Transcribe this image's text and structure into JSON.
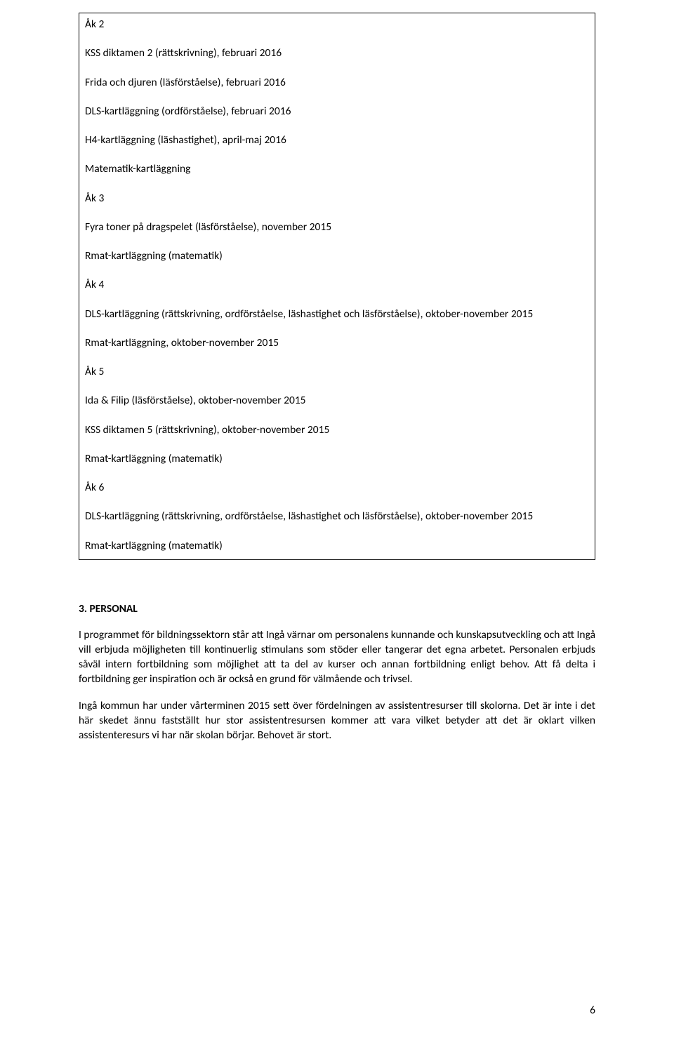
{
  "box": {
    "ak2_label": "Åk 2",
    "ak2_l1": "KSS diktamen 2 (rättskrivning), februari 2016",
    "ak2_l2": "Frida och djuren (läsförståelse), februari 2016",
    "ak2_l3": "DLS-kartläggning (ordförståelse), februari 2016",
    "ak2_l4": "H4-kartläggning (läshastighet), april-maj 2016",
    "ak2_l5": "Matematik-kartläggning",
    "ak3_label": "Åk 3",
    "ak3_l1": "Fyra toner på dragspelet (läsförståelse), november 2015",
    "ak3_l2": "Rmat-kartläggning (matematik)",
    "ak4_label": "Åk 4",
    "ak4_l1": "DLS-kartläggning (rättskrivning, ordförståelse, läshastighet och läsförståelse), oktober-november 2015",
    "ak4_l2": "Rmat-kartläggning, oktober-november 2015",
    "ak5_label": "Åk 5",
    "ak5_l1": "Ida & Filip (läsförståelse), oktober-november 2015",
    "ak5_l2": "KSS diktamen 5 (rättskrivning), oktober-november 2015",
    "ak5_l3": "Rmat-kartläggning (matematik)",
    "ak6_label": "Åk 6",
    "ak6_l1": "DLS-kartläggning (rättskrivning, ordförståelse, läshastighet och läsförståelse), oktober-november 2015",
    "ak6_l2": "Rmat-kartläggning (matematik)"
  },
  "section3": {
    "heading": "3. PERSONAL",
    "p1": "I programmet för bildningssektorn står att Ingå värnar om personalens kunnande och kunskapsutveckling och att Ingå vill erbjuda möjligheten till kontinuerlig stimulans som stöder eller tangerar det egna arbetet. Personalen erbjuds såväl intern fortbildning som möjlighet att ta del av kurser och annan fortbildning enligt behov. Att få delta i fortbildning ger inspiration och är också en grund för välmående och trivsel.",
    "p2": "Ingå kommun har under vårterminen 2015 sett över fördelningen av assistentresurser till skolorna. Det är inte i det här skedet ännu fastställt hur stor assistentresursen kommer att vara vilket betyder att det är oklart vilken assistenteresurs vi har när skolan börjar. Behovet är stort."
  },
  "page_number": "6"
}
